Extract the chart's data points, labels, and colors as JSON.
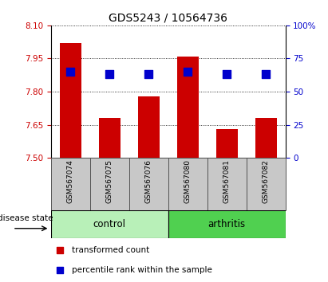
{
  "title": "GDS5243 / 10564736",
  "samples": [
    "GSM567074",
    "GSM567075",
    "GSM567076",
    "GSM567080",
    "GSM567081",
    "GSM567082"
  ],
  "red_values": [
    8.02,
    7.68,
    7.78,
    7.96,
    7.63,
    7.68
  ],
  "blue_percentiles": [
    65,
    63,
    63,
    65,
    63,
    63
  ],
  "ylim_left": [
    7.5,
    8.1
  ],
  "ylim_right": [
    0,
    100
  ],
  "yticks_left": [
    7.5,
    7.65,
    7.8,
    7.95,
    8.1
  ],
  "yticks_right": [
    0,
    25,
    50,
    75,
    100
  ],
  "bar_bottom": 7.5,
  "bar_color": "#cc0000",
  "dot_color": "#0000cc",
  "control_samples": [
    0,
    1,
    2
  ],
  "arthritis_samples": [
    3,
    4,
    5
  ],
  "control_color": "#b8f0b8",
  "arthritis_color": "#50d050",
  "group_label_control": "control",
  "group_label_arthritis": "arthritis",
  "disease_state_label": "disease state",
  "legend_red": "transformed count",
  "legend_blue": "percentile rank within the sample",
  "tick_color_left": "#cc0000",
  "tick_color_right": "#0000cc",
  "bar_width": 0.55,
  "dot_size": 45,
  "sample_box_color": "#c8c8c8",
  "title_fontsize": 10
}
